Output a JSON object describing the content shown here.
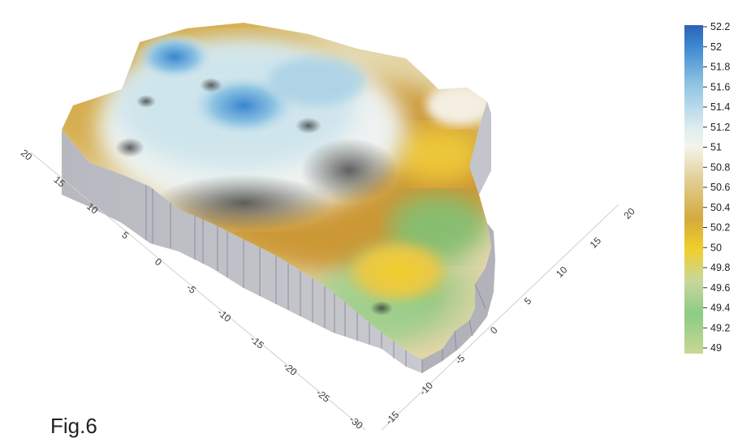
{
  "figure_label": "Fig.6",
  "chart_data": {
    "type": "heatmap",
    "subtype": "3d-surface",
    "axis_left_ticks": [
      "20",
      "15",
      "10",
      "5",
      "0",
      "-5",
      "-10",
      "-15",
      "-20",
      "-25",
      "-30"
    ],
    "axis_right_ticks": [
      "-15",
      "-10",
      "-5",
      "0",
      "5",
      "10",
      "15",
      "20"
    ],
    "colorbar": {
      "ticks": [
        "52.2",
        "52",
        "51.8",
        "51.6",
        "51.4",
        "51.2",
        "51",
        "50.8",
        "50.6",
        "50.4",
        "50.2",
        "50",
        "49.8",
        "49.6",
        "49.4",
        "49.2",
        "49"
      ],
      "min": 49,
      "max": 52.2,
      "colors": [
        "#2f62b5",
        "#3a86d0",
        "#5aa6dc",
        "#8fc4e3",
        "#bcdbe9",
        "#dcecf0",
        "#f4f4ec",
        "#ece3c2",
        "#e2cf95",
        "#d9bb63",
        "#d4a93d",
        "#e8b62a",
        "#f0cf2a",
        "#c8d79c",
        "#8ccc84",
        "#6cbd6c",
        "#c8d894"
      ]
    },
    "grid": false
  }
}
